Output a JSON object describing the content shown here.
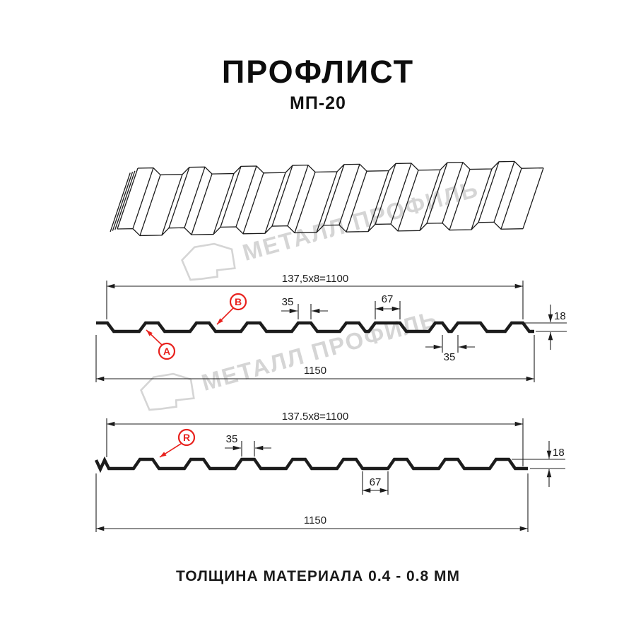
{
  "title": "ПРОФЛИСТ",
  "subtitle": "МП-20",
  "footer": "ТОЛЩИНА МАТЕРИАЛА 0.4 - 0.8 ММ",
  "watermark": {
    "text": "МЕТАЛЛ ПРОФИЛЬ"
  },
  "colors": {
    "line": "#1c1c1c",
    "red": "#e8211d",
    "watermark": "#d5d5d5"
  },
  "profile_top": {
    "coverage_width": "137,5x8=1100",
    "overall_width": "1150",
    "height": "18",
    "rib_top_width": "35",
    "rib_spacing": "67",
    "groove_width": "35",
    "markers": {
      "a": "A",
      "b": "B"
    }
  },
  "profile_bottom": {
    "coverage_width": "137.5x8=1100",
    "overall_width": "1150",
    "height": "18",
    "rib_top_width": "35",
    "rib_spacing": "67",
    "markers": {
      "r": "R"
    }
  }
}
